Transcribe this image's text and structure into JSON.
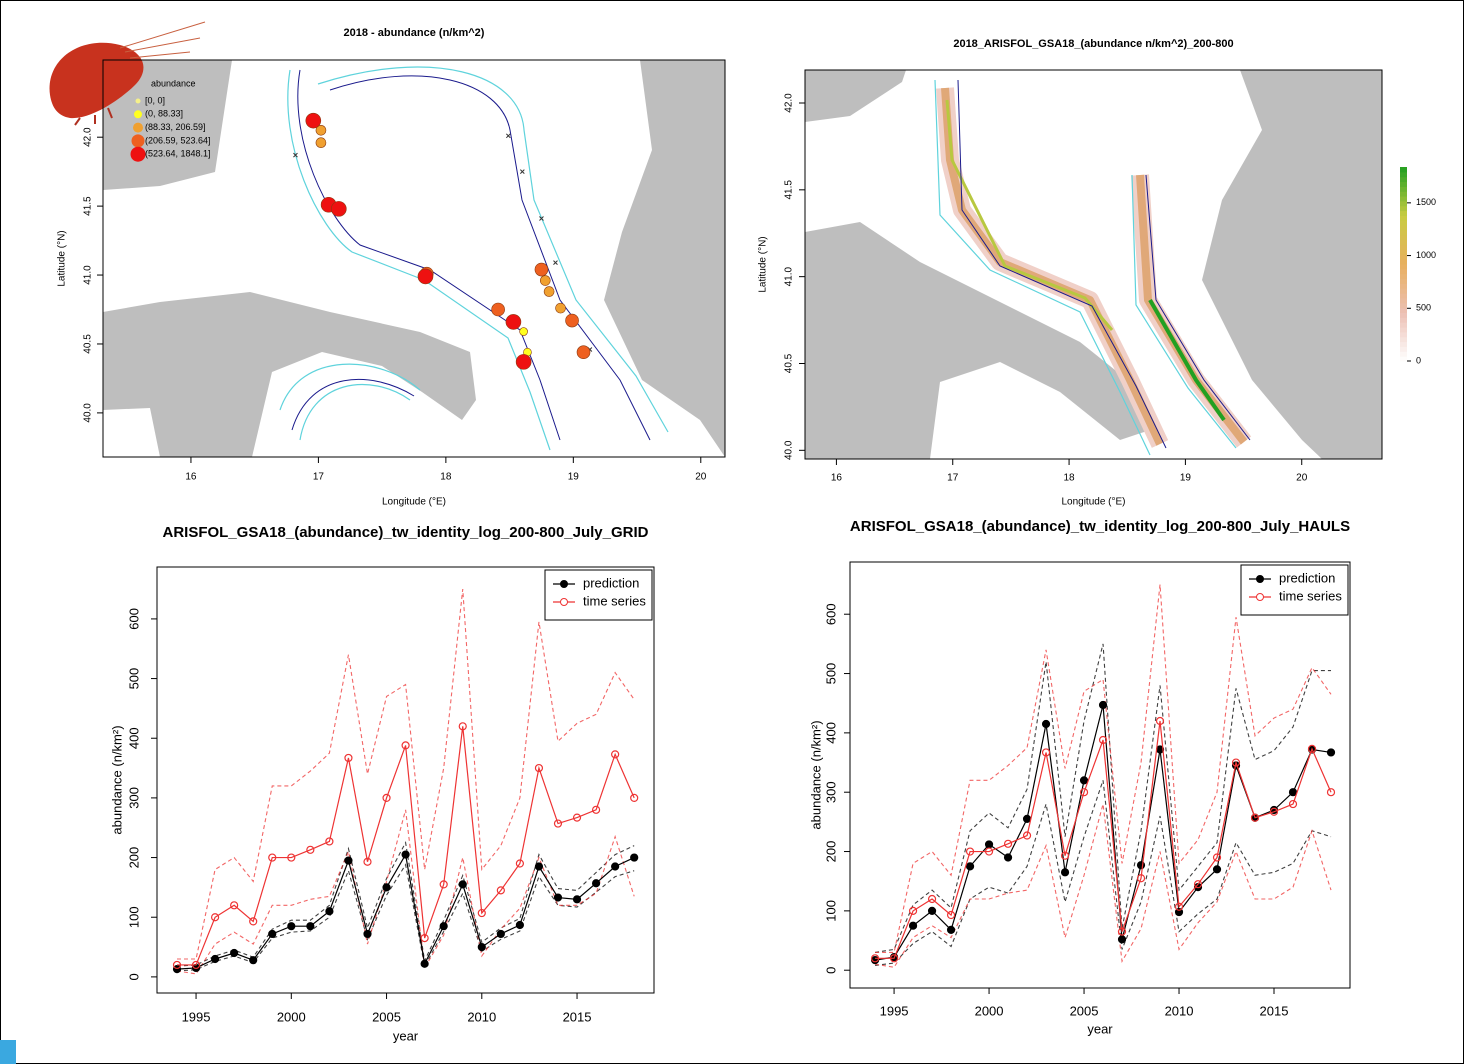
{
  "chart_data": [
    {
      "type": "scatter",
      "title": "2018 - abundance (n/km^2)",
      "x_label": "Longitude (°E)",
      "y_label": "Latitude (°N)",
      "xlim": [
        15.31,
        20.19
      ],
      "ylim": [
        39.68,
        42.56
      ],
      "xticks": [
        16,
        17,
        18,
        19,
        20
      ],
      "yticks": [
        {
          "value": 40,
          "label": "40.0"
        },
        40.5,
        {
          "value": 41,
          "label": "41.0"
        },
        41.5,
        {
          "value": 42,
          "label": "42.0"
        }
      ],
      "legend_title": "abundance",
      "legend": "top-left",
      "series": [
        {
          "name": "[0, 0]",
          "color": "#f5f08a",
          "x": [
            16.82,
            18.49,
            18.6,
            18.75,
            18.86,
            19.13
          ],
          "y": [
            41.87,
            42.01,
            41.75,
            41.41,
            41.09,
            40.46
          ]
        },
        {
          "name": "(0, 88.33]",
          "color": "#ffff20",
          "x": [
            18.61,
            18.64
          ],
          "y": [
            40.59,
            40.44
          ]
        },
        {
          "name": "(88.33, 206.59]",
          "color": "#f0a030",
          "x": [
            17.02,
            17.02,
            18.78,
            18.81,
            18.9
          ],
          "y": [
            42.05,
            41.96,
            40.96,
            40.88,
            40.76
          ]
        },
        {
          "name": "(206.59, 523.64]",
          "color": "#ee6020",
          "x": [
            17.85,
            18.41,
            18.75,
            18.99,
            19.08
          ],
          "y": [
            41.01,
            40.75,
            41.04,
            40.67,
            40.44
          ]
        },
        {
          "name": "(523.64, 1848.1]",
          "color": "#ee1111",
          "x": [
            16.96,
            17.08,
            17.16,
            17.84,
            18.53,
            18.61
          ],
          "y": [
            42.12,
            41.51,
            41.48,
            40.99,
            40.66,
            40.37
          ]
        }
      ]
    },
    {
      "type": "raster",
      "title": "2018_ARISFOL_GSA18_(abundance n/km^2)_200-800",
      "x_label": "Longitude (°E)",
      "y_label": "Latitude (°N)",
      "xlim": [
        15.73,
        20.69
      ],
      "ylim": [
        39.95,
        42.19
      ],
      "xticks": [
        16,
        17,
        18,
        19,
        20
      ],
      "yticks": [
        {
          "value": 40,
          "label": "40.0"
        },
        40.5,
        {
          "value": 41,
          "label": "41.0"
        },
        41.5,
        {
          "value": 42,
          "label": "42.0"
        }
      ],
      "colorbar_lim": [
        0,
        1840
      ],
      "colorbar_ticks": [
        0,
        500,
        1000,
        1500
      ],
      "colorbar_colors": [
        "#ffffff",
        "#ecc0b4",
        "#e8b060",
        "#c8cc40",
        "#22a022"
      ]
    },
    {
      "type": "line",
      "title": "ARISFOL_GSA18_(abundance)_tw_identity_log_200-800_July_GRID",
      "x_label": "year",
      "y_label": "abundance (n/km²)",
      "xlim": [
        1992.95,
        2019.04
      ],
      "ylim": [
        -27,
        687
      ],
      "xticks": [
        1995,
        2000,
        2005,
        2010,
        2015
      ],
      "yticks": [
        0,
        100,
        200,
        300,
        400,
        500,
        600
      ],
      "legend": "top-right",
      "x": [
        1994,
        1995,
        1996,
        1997,
        1998,
        1999,
        2000,
        2001,
        2002,
        2003,
        2004,
        2005,
        2006,
        2007,
        2008,
        2009,
        2010,
        2011,
        2012,
        2013,
        2014,
        2015,
        2016,
        2017,
        2018
      ],
      "series": [
        {
          "name": "prediction",
          "color": "#000000",
          "marker": "filled",
          "values": [
            13,
            15,
            30,
            40,
            28,
            72,
            85,
            85,
            110,
            195,
            72,
            150,
            205,
            22,
            85,
            155,
            50,
            72,
            87,
            185,
            133,
            130,
            157,
            185,
            200
          ],
          "upper": [
            18,
            20,
            35,
            45,
            33,
            80,
            95,
            95,
            120,
            215,
            82,
            165,
            225,
            27,
            95,
            170,
            58,
            82,
            98,
            205,
            148,
            145,
            175,
            205,
            220
          ],
          "lower": [
            10,
            12,
            26,
            35,
            24,
            65,
            75,
            77,
            100,
            178,
            63,
            137,
            188,
            18,
            76,
            140,
            43,
            63,
            77,
            168,
            120,
            117,
            142,
            168,
            178
          ]
        },
        {
          "name": "time series",
          "color": "#ee3333",
          "marker": "open",
          "values": [
            20,
            20,
            100,
            120,
            93,
            200,
            200,
            213,
            227,
            367,
            193,
            300,
            388,
            65,
            155,
            420,
            107,
            145,
            190,
            350,
            257,
            267,
            280,
            373,
            300
          ],
          "upper": [
            30,
            30,
            180,
            200,
            160,
            320,
            320,
            345,
            375,
            540,
            340,
            470,
            490,
            180,
            350,
            650,
            180,
            220,
            300,
            595,
            395,
            425,
            440,
            510,
            465
          ],
          "lower": [
            10,
            5,
            55,
            75,
            55,
            120,
            120,
            130,
            135,
            210,
            55,
            160,
            280,
            15,
            70,
            200,
            35,
            80,
            115,
            200,
            120,
            120,
            140,
            235,
            135
          ]
        }
      ]
    },
    {
      "type": "line",
      "title": "ARISFOL_GSA18_(abundance)_tw_identity_log_200-800_July_HAULS",
      "x_label": "year",
      "y_label": "abundance (n/km²)",
      "xlim": [
        1992.68,
        2019.0
      ],
      "ylim": [
        -30,
        688
      ],
      "xticks": [
        1995,
        2000,
        2005,
        2010,
        2015
      ],
      "yticks": [
        0,
        100,
        200,
        300,
        400,
        500,
        600
      ],
      "legend": "top-right",
      "x": [
        1994,
        1995,
        1996,
        1997,
        1998,
        1999,
        2000,
        2001,
        2002,
        2003,
        2004,
        2005,
        2006,
        2007,
        2008,
        2009,
        2010,
        2011,
        2012,
        2013,
        2014,
        2015,
        2016,
        2017,
        2018
      ],
      "series": [
        {
          "name": "prediction",
          "color": "#000000",
          "marker": "filled",
          "values": [
            17,
            22,
            75,
            100,
            68,
            175,
            212,
            190,
            255,
            415,
            165,
            320,
            447,
            52,
            177,
            372,
            98,
            140,
            170,
            345,
            257,
            270,
            300,
            372,
            367
          ],
          "upper": [
            30,
            35,
            110,
            135,
            105,
            235,
            265,
            240,
            305,
            520,
            225,
            420,
            550,
            70,
            235,
            480,
            135,
            175,
            215,
            475,
            355,
            370,
            410,
            505,
            505
          ],
          "lower": [
            8,
            12,
            45,
            65,
            40,
            120,
            140,
            130,
            175,
            280,
            115,
            225,
            320,
            35,
            115,
            260,
            65,
            95,
            120,
            215,
            160,
            165,
            180,
            235,
            225
          ]
        },
        {
          "name": "time series",
          "color": "#ee3333",
          "marker": "open",
          "values": [
            20,
            20,
            100,
            120,
            93,
            200,
            200,
            213,
            227,
            367,
            193,
            300,
            388,
            65,
            155,
            420,
            107,
            145,
            190,
            350,
            257,
            267,
            280,
            373,
            300
          ],
          "upper": [
            30,
            30,
            180,
            200,
            160,
            320,
            320,
            345,
            375,
            540,
            340,
            470,
            490,
            180,
            350,
            650,
            180,
            220,
            300,
            595,
            395,
            425,
            440,
            510,
            465
          ],
          "lower": [
            10,
            5,
            55,
            75,
            55,
            120,
            120,
            130,
            135,
            210,
            55,
            160,
            280,
            15,
            70,
            200,
            35,
            80,
            115,
            200,
            120,
            120,
            140,
            235,
            135
          ]
        }
      ]
    }
  ]
}
